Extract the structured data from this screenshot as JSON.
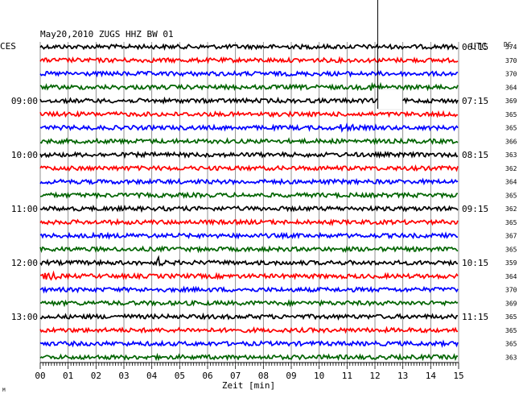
{
  "chart_data": {
    "type": "line",
    "title": "May20,2010   ZUGS HHZ BW 01",
    "left_timezone_label": "CES",
    "right_timezone_label": "UTC",
    "dc_header": "DC",
    "xlabel": "Zeit [min]",
    "xlim": [
      0,
      15
    ],
    "x_ticks": [
      "00",
      "01",
      "02",
      "03",
      "04",
      "05",
      "06",
      "07",
      "08",
      "09",
      "10",
      "11",
      "12",
      "13",
      "14",
      "15"
    ],
    "left_time_labels": [
      {
        "trace": 4,
        "text": "09:00"
      },
      {
        "trace": 8,
        "text": "10:00"
      },
      {
        "trace": 12,
        "text": "11:00"
      },
      {
        "trace": 16,
        "text": "12:00"
      },
      {
        "trace": 20,
        "text": "13:00"
      }
    ],
    "right_time_labels": [
      {
        "trace": 0,
        "text": "06:15"
      },
      {
        "trace": 4,
        "text": "07:15"
      },
      {
        "trace": 8,
        "text": "08:15"
      },
      {
        "trace": 12,
        "text": "09:15"
      },
      {
        "trace": 16,
        "text": "10:15"
      },
      {
        "trace": 20,
        "text": "11:15"
      }
    ],
    "dc_values": [
      "374",
      "370",
      "370",
      "364",
      "369",
      "365",
      "365",
      "366",
      "363",
      "362",
      "364",
      "365",
      "362",
      "365",
      "367",
      "365",
      "359",
      "364",
      "370",
      "369",
      "365",
      "365",
      "365",
      "363"
    ],
    "trace_colors": [
      "#000000",
      "#ff0000",
      "#0000ff",
      "#006400"
    ],
    "grid": true,
    "events": [
      {
        "trace": 16,
        "minute": 4.3,
        "type": "spike"
      },
      {
        "trace": 17,
        "minute": 0.35,
        "type": "burst"
      },
      {
        "trace": 6,
        "minute": 11.0,
        "type": "burst"
      },
      {
        "trace": 3,
        "minute": 12.0,
        "type": "burst"
      }
    ],
    "gap": {
      "trace": 4,
      "start_minute": 12.1,
      "end_minute": 12.95
    },
    "marker_line": {
      "minute": 12.1,
      "to_trace": 4
    }
  },
  "footer_mark": "M"
}
